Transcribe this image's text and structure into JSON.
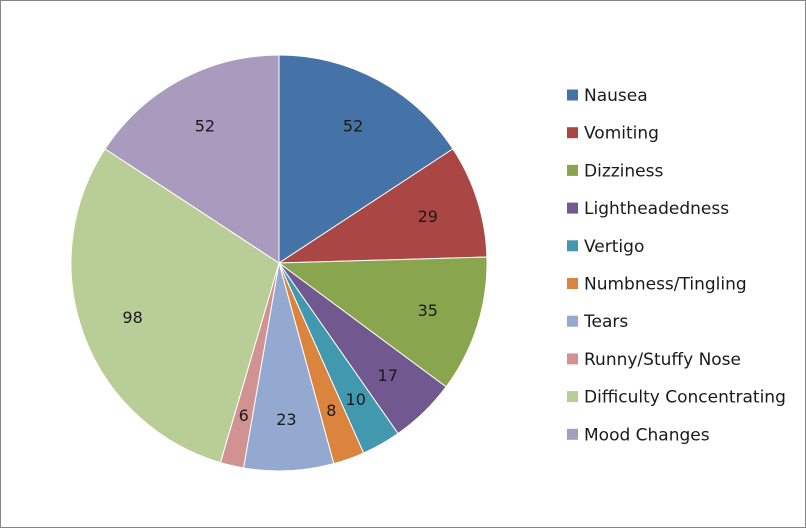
{
  "chart_data": {
    "type": "pie",
    "title": "",
    "legend_position": "right",
    "categories": [
      "Nausea",
      "Vomiting",
      "Dizziness",
      "Lightheadedness",
      "Vertigo",
      "Numbness/Tingling",
      "Tears",
      "Runny/Stuffy Nose",
      "Difficulty Concentrating",
      "Mood Changes"
    ],
    "values": [
      52,
      29,
      35,
      17,
      10,
      8,
      23,
      6,
      98,
      52
    ],
    "colors": [
      "#4572A7",
      "#AA4643",
      "#89A54E",
      "#71588F",
      "#4198AF",
      "#DB843D",
      "#93A9CF",
      "#D19392",
      "#B9CD96",
      "#A99BBD"
    ]
  }
}
